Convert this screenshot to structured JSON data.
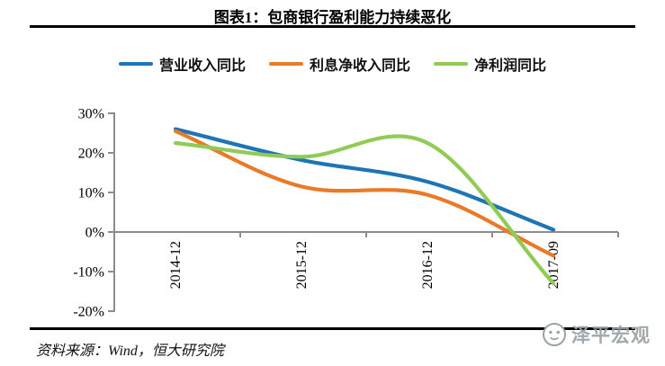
{
  "title": "图表1：包商银行盈利能力持续恶化",
  "chart_data": {
    "type": "line",
    "smooth": true,
    "grid": false,
    "legend_position": "top",
    "categories": [
      "2014-12",
      "2015-12",
      "2016-12",
      "2017-09"
    ],
    "series": [
      {
        "name": "营业收入同比",
        "color": "#1F74B5",
        "values": [
          26.0,
          18.2,
          12.7,
          0.6
        ]
      },
      {
        "name": "利息净收入同比",
        "color": "#E87A28",
        "values": [
          25.5,
          11.5,
          9.4,
          -6.0
        ]
      },
      {
        "name": "净利润同比",
        "color": "#8FCB55",
        "values": [
          22.5,
          19.0,
          22.5,
          -13.0
        ]
      }
    ],
    "xlabel": "",
    "ylabel": "",
    "ylim": [
      -20,
      30
    ],
    "y_ticks": [
      30,
      20,
      10,
      0,
      -10,
      -20
    ],
    "y_tick_labels": [
      "30%",
      "20%",
      "10%",
      "0%",
      "-10%",
      "-20%"
    ]
  },
  "footer": {
    "source": "资料来源：Wind，恒大研究院"
  },
  "watermark": {
    "text": "泽平宏观"
  },
  "colors": {
    "axis": "#8C8C8C",
    "rule": "#000000",
    "watermark": "#9AA2A6",
    "background": "#FFFFFF"
  }
}
